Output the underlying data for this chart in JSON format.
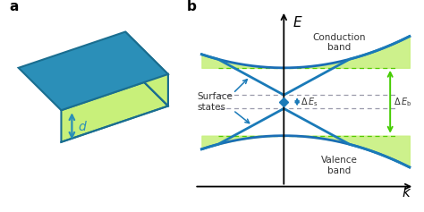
{
  "panel_a_label": "a",
  "panel_b_label": "b",
  "box_top_color": "#2b8fb8",
  "box_side_color": "#c8f07a",
  "box_edge_color": "#1a6e90",
  "band_fill_color": "#c8f080",
  "band_line_color": "#1a6eb5",
  "surface_line_color": "#1a7ab8",
  "arrow_color": "#2b8fb8",
  "gap_arrow_color": "#44cc00",
  "dashed_gray": "#9999aa",
  "dashed_green": "#55cc00",
  "axis_color": "#000000",
  "text_color": "#333333",
  "d_label": "d",
  "conduction_label": "Conduction\nband",
  "valence_label": "Valence\nband",
  "surface_label": "Surface\nstates",
  "E_label": "E",
  "k_label": "k"
}
